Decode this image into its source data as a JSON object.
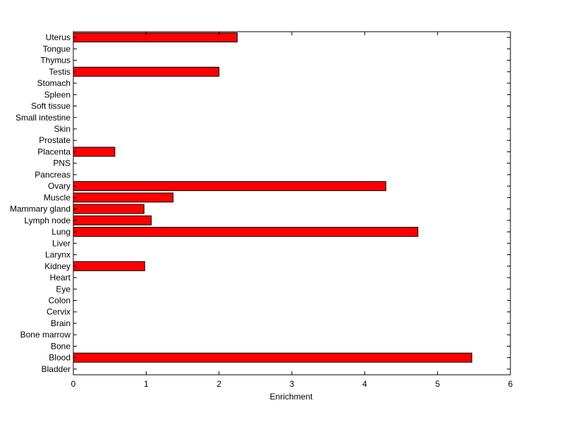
{
  "chart_data": {
    "type": "bar",
    "orientation": "horizontal",
    "title": "",
    "xlabel": "Enrichment",
    "ylabel": "",
    "xlim": [
      0,
      6
    ],
    "x_ticks": [
      0,
      1,
      2,
      3,
      4,
      5,
      6
    ],
    "grid": false,
    "legend": "none",
    "bar_color": "#ff0000",
    "categories": [
      "Bladder",
      "Blood",
      "Bone",
      "Bone marrow",
      "Brain",
      "Cervix",
      "Colon",
      "Eye",
      "Heart",
      "Kidney",
      "Larynx",
      "Liver",
      "Lung",
      "Lymph node",
      "Mammary gland",
      "Muscle",
      "Ovary",
      "Pancreas",
      "PNS",
      "Placenta",
      "Prostate",
      "Skin",
      "Small intestine",
      "Soft tissue",
      "Spleen",
      "Stomach",
      "Testis",
      "Thymus",
      "Tongue",
      "Uterus"
    ],
    "values": [
      0,
      5.47,
      0,
      0,
      0,
      0,
      0,
      0,
      0,
      0.98,
      0,
      0,
      4.73,
      1.07,
      0.97,
      1.37,
      4.29,
      0,
      0,
      0.57,
      0,
      0,
      0,
      0,
      0,
      0,
      2.0,
      0,
      0,
      2.25
    ]
  }
}
